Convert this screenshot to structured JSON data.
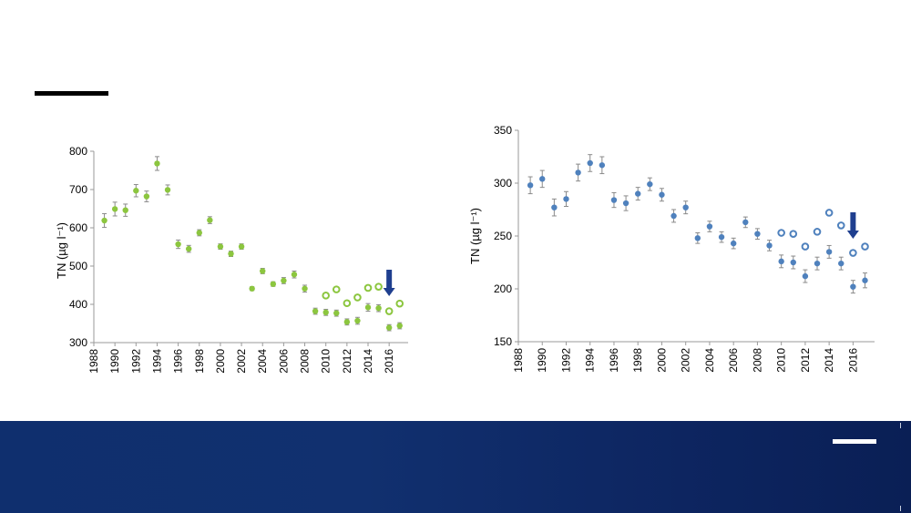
{
  "colors": {
    "left_series": "#8cc63f",
    "right_series": "#4f81bd",
    "arrow": "#1f3f8f",
    "footer": "#0f2f6e"
  },
  "chart_data": [
    {
      "type": "scatter",
      "ylabel": "TN (µg l⁻¹)",
      "xlim": [
        1988,
        2017.8
      ],
      "ylim": [
        300,
        800
      ],
      "xticks": [
        "1988",
        "1990",
        "1992",
        "1994",
        "1996",
        "1998",
        "2000",
        "2002",
        "2004",
        "2006",
        "2008",
        "2010",
        "2012",
        "2014",
        "2016"
      ],
      "yticks": [
        "300",
        "400",
        "500",
        "600",
        "700",
        "800"
      ],
      "grid": false,
      "arrow_at_year": 2016,
      "series": [
        {
          "marker": "filled-circle-with-error-bars",
          "x": [
            1989,
            1990,
            1991,
            1992,
            1993,
            1994,
            1995,
            1996,
            1997,
            1998,
            1999,
            2000,
            2001,
            2002,
            2003,
            2004,
            2005,
            2006,
            2007,
            2008,
            2009,
            2010,
            2011,
            2012,
            2013,
            2014,
            2015,
            2016,
            2017
          ],
          "y": [
            619,
            649,
            646,
            697,
            682,
            768,
            699,
            557,
            545,
            587,
            620,
            551,
            532,
            551,
            441,
            487,
            453,
            462,
            478,
            441,
            382,
            379,
            377,
            354,
            357,
            392,
            390,
            339,
            344
          ],
          "err": [
            18,
            18,
            16,
            16,
            14,
            18,
            13,
            11,
            9,
            8,
            9,
            7,
            7,
            7,
            5,
            7,
            6,
            8,
            9,
            9,
            8,
            8,
            8,
            8,
            9,
            10,
            9,
            8,
            8
          ]
        },
        {
          "marker": "open-circle",
          "x": [
            2010,
            2011,
            2012,
            2013,
            2014,
            2015,
            2016,
            2017
          ],
          "y": [
            423,
            439,
            403,
            418,
            443,
            446,
            382,
            402
          ]
        }
      ]
    },
    {
      "type": "scatter",
      "ylabel": "TN (µg l⁻¹)",
      "xlim": [
        1988,
        2017.8
      ],
      "ylim": [
        150,
        350
      ],
      "xticks": [
        "1988",
        "1990",
        "1992",
        "1994",
        "1996",
        "1998",
        "2000",
        "2002",
        "2004",
        "2006",
        "2008",
        "2010",
        "2012",
        "2014",
        "2016"
      ],
      "yticks": [
        "150",
        "200",
        "250",
        "300",
        "350"
      ],
      "grid": false,
      "arrow_at_year": 2016,
      "series": [
        {
          "marker": "filled-circle-with-error-bars",
          "x": [
            1989,
            1990,
            1991,
            1992,
            1993,
            1994,
            1995,
            1996,
            1997,
            1998,
            1999,
            2000,
            2001,
            2002,
            2003,
            2004,
            2005,
            2006,
            2007,
            2008,
            2009,
            2010,
            2011,
            2012,
            2013,
            2014,
            2015,
            2016,
            2017
          ],
          "y": [
            298,
            304,
            277,
            285,
            310,
            319,
            317,
            284,
            281,
            290,
            299,
            289,
            269,
            277,
            248,
            259,
            249,
            243,
            263,
            252,
            241,
            226,
            225,
            212,
            224,
            235,
            224,
            202,
            208
          ],
          "err": [
            8,
            8,
            8,
            7,
            8,
            8,
            8,
            7,
            7,
            6,
            6,
            6,
            6,
            6,
            5,
            5,
            5,
            5,
            5,
            5,
            5,
            6,
            6,
            6,
            6,
            6,
            6,
            6,
            7
          ]
        },
        {
          "marker": "open-circle",
          "x": [
            2010,
            2011,
            2012,
            2013,
            2014,
            2015,
            2016,
            2017
          ],
          "y": [
            253,
            252,
            240,
            254,
            272,
            260,
            234,
            240
          ]
        }
      ]
    }
  ]
}
